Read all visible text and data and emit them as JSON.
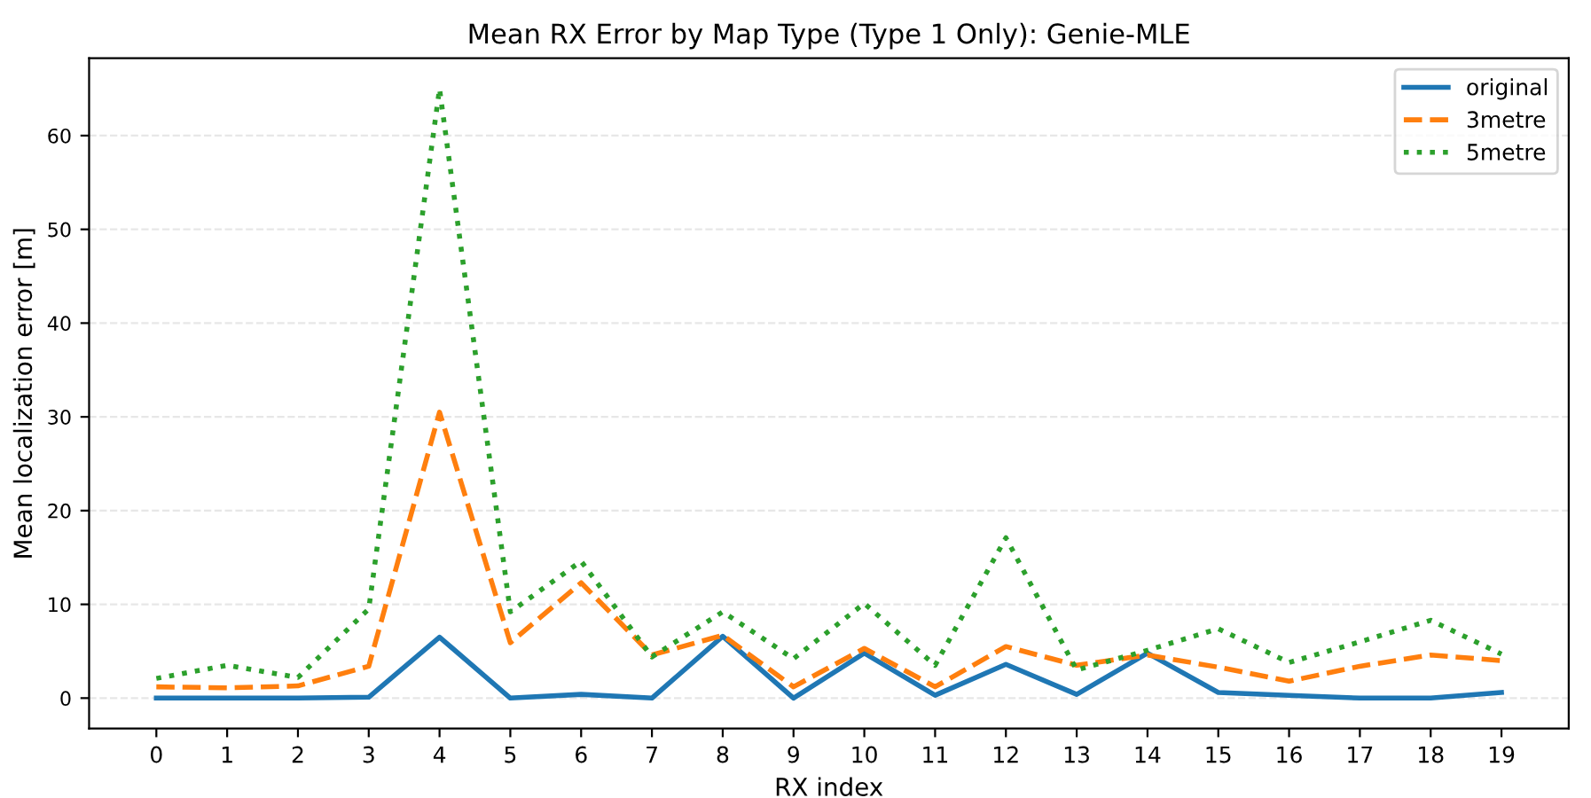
{
  "chart_data": {
    "type": "line",
    "title": "Mean RX Error by Map Type (Type 1 Only): Genie-MLE",
    "xlabel": "RX index",
    "ylabel": "Mean localization error [m]",
    "categories": [
      "0",
      "1",
      "2",
      "3",
      "4",
      "5",
      "6",
      "7",
      "8",
      "9",
      "10",
      "11",
      "12",
      "13",
      "14",
      "15",
      "16",
      "17",
      "18",
      "19"
    ],
    "series": [
      {
        "name": "original",
        "color": "#1f77b4",
        "line_style": "solid",
        "values": [
          0,
          0,
          0,
          0.1,
          6.5,
          0,
          0.4,
          0,
          6.6,
          0,
          4.8,
          0.3,
          3.6,
          0.4,
          4.8,
          0.6,
          0.3,
          0,
          0,
          0.6
        ]
      },
      {
        "name": "3metre",
        "color": "#ff7f0e",
        "line_style": "dashed",
        "values": [
          1.2,
          1.1,
          1.3,
          3.4,
          30.5,
          5.9,
          12.3,
          4.6,
          6.7,
          1.2,
          5.3,
          1.2,
          5.5,
          3.5,
          4.6,
          3.3,
          1.8,
          3.4,
          4.6,
          4.0
        ]
      },
      {
        "name": "5metre",
        "color": "#2ca02c",
        "line_style": "dotted",
        "values": [
          2.1,
          3.5,
          2.2,
          9.5,
          65,
          9.2,
          14.6,
          4.4,
          9.2,
          4.2,
          10.1,
          3.5,
          17.1,
          3.0,
          5.1,
          7.4,
          3.8,
          6.0,
          8.3,
          4.7
        ]
      }
    ],
    "ylim": [
      -3.25,
      68.25
    ],
    "yticks": [
      0,
      10,
      20,
      30,
      40,
      50,
      60
    ],
    "grid": "y",
    "legend": "top right"
  }
}
